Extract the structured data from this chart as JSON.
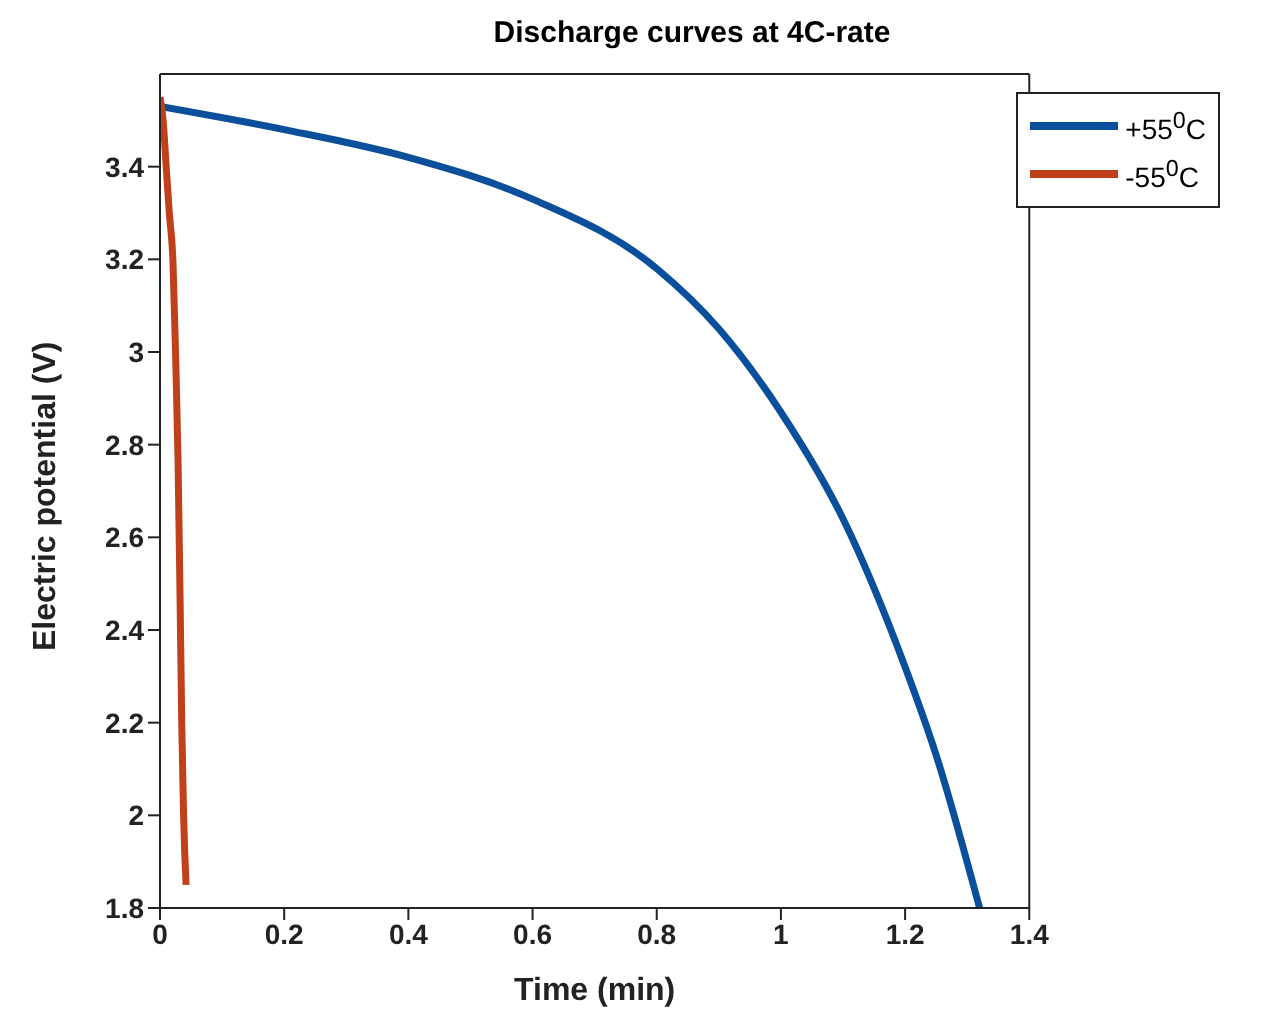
{
  "chart_data": {
    "type": "line",
    "title": "Discharge curves at 4C-rate",
    "xlabel": "Time (min)",
    "ylabel": "Electric potential (V)",
    "xlim": [
      0,
      1.4
    ],
    "xticks": [
      0,
      0.2,
      0.4,
      0.6,
      0.8,
      1,
      1.2,
      1.4
    ],
    "ylim": [
      1.8,
      3.6
    ],
    "yticks": [
      1.8,
      2,
      2.2,
      2.4,
      2.6,
      2.8,
      3,
      3.2,
      3.4
    ],
    "grid": false,
    "legend": "top right",
    "marker": "none",
    "line_style": "solid",
    "series": [
      {
        "name": "+55$^{0}$C",
        "color": "#0a4f9c",
        "x": [
          0,
          0.2,
          0.4,
          0.6,
          0.8,
          0.9,
          1,
          1.1,
          1.2,
          1.25,
          1.32
        ],
        "values": [
          3.53,
          3.48,
          3.42,
          3.33,
          3.18,
          3.05,
          2.87,
          2.64,
          2.32,
          2.13,
          1.8
        ]
      },
      {
        "name": "-55$^{0}$C",
        "color": "#c0401a",
        "x": [
          0,
          0.005,
          0.01,
          0.015,
          0.021,
          0.025,
          0.029,
          0.032,
          0.035,
          0.038,
          0.042
        ],
        "values": [
          3.55,
          3.5,
          3.4,
          3.3,
          3.19,
          3,
          2.77,
          2.5,
          2.2,
          2,
          1.85
        ]
      }
    ]
  }
}
